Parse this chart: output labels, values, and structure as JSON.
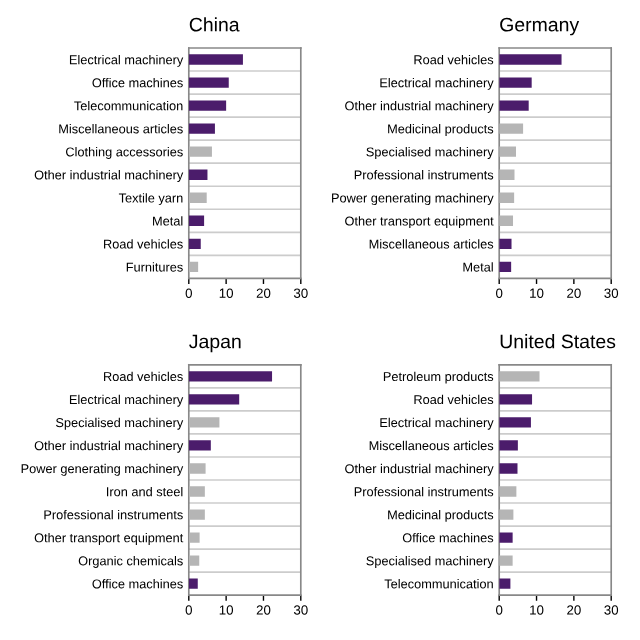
{
  "chart_data": [
    {
      "type": "bar",
      "orientation": "horizontal",
      "title": "China",
      "grid": "y",
      "xlim": [
        0,
        30
      ],
      "xticks": [
        0,
        10,
        20,
        30
      ],
      "categories": [
        "Electrical machinery",
        "Office machines",
        "Telecommunication",
        "Miscellaneous articles",
        "Clothing accessories",
        "Other industrial machinery",
        "Textile yarn",
        "Metal",
        "Road vehicles",
        "Furnitures"
      ],
      "values": [
        14.5,
        10.7,
        10,
        7,
        6.2,
        5,
        4.8,
        4.1,
        3.2,
        2.5
      ],
      "colors": [
        "#4b1c6b",
        "#4b1c6b",
        "#4b1c6b",
        "#4b1c6b",
        "#b5b5b5",
        "#4b1c6b",
        "#b5b5b5",
        "#4b1c6b",
        "#4b1c6b",
        "#b5b5b5"
      ]
    },
    {
      "type": "bar",
      "orientation": "horizontal",
      "title": "Germany",
      "grid": "y",
      "xlim": [
        0,
        30
      ],
      "xticks": [
        0,
        10,
        20,
        30
      ],
      "categories": [
        "Road vehicles",
        "Electrical machinery",
        "Other industrial machinery",
        "Medicinal products",
        "Specialised machinery",
        "Professional instruments",
        "Power generating machinery",
        "Other transport equipment",
        "Miscellaneous articles",
        "Metal"
      ],
      "values": [
        16.7,
        8.7,
        7.9,
        6.4,
        4.5,
        4.1,
        4.0,
        3.7,
        3.3,
        3.2
      ],
      "colors": [
        "#4b1c6b",
        "#4b1c6b",
        "#4b1c6b",
        "#b5b5b5",
        "#b5b5b5",
        "#b5b5b5",
        "#b5b5b5",
        "#b5b5b5",
        "#4b1c6b",
        "#4b1c6b"
      ]
    },
    {
      "type": "bar",
      "orientation": "horizontal",
      "title": "Japan",
      "grid": "y",
      "xlim": [
        0,
        30
      ],
      "xticks": [
        0,
        10,
        20,
        30
      ],
      "categories": [
        "Road vehicles",
        "Electrical machinery",
        "Specialised machinery",
        "Other industrial machinery",
        "Power generating machinery",
        "Iron and steel",
        "Professional instruments",
        "Other transport equipment",
        "Organic chemicals",
        "Office machines"
      ],
      "values": [
        22.3,
        13.5,
        8.2,
        5.9,
        4.5,
        4.3,
        4.3,
        2.9,
        2.8,
        2.4
      ],
      "colors": [
        "#4b1c6b",
        "#4b1c6b",
        "#b5b5b5",
        "#4b1c6b",
        "#b5b5b5",
        "#b5b5b5",
        "#b5b5b5",
        "#b5b5b5",
        "#b5b5b5",
        "#4b1c6b"
      ]
    },
    {
      "type": "bar",
      "orientation": "horizontal",
      "title": "United States",
      "grid": "y",
      "xlim": [
        0,
        30
      ],
      "xticks": [
        0,
        10,
        20,
        30
      ],
      "categories": [
        "Petroleum products",
        "Road vehicles",
        "Electrical machinery",
        "Miscellaneous articles",
        "Other industrial machinery",
        "Professional instruments",
        "Medicinal products",
        "Office machines",
        "Specialised machinery",
        "Telecommunication"
      ],
      "values": [
        10.8,
        8.8,
        8.5,
        5.0,
        4.9,
        4.6,
        3.8,
        3.6,
        3.6,
        3.0
      ],
      "colors": [
        "#b5b5b5",
        "#4b1c6b",
        "#4b1c6b",
        "#4b1c6b",
        "#4b1c6b",
        "#b5b5b5",
        "#b5b5b5",
        "#4b1c6b",
        "#b5b5b5",
        "#4b1c6b"
      ]
    }
  ]
}
